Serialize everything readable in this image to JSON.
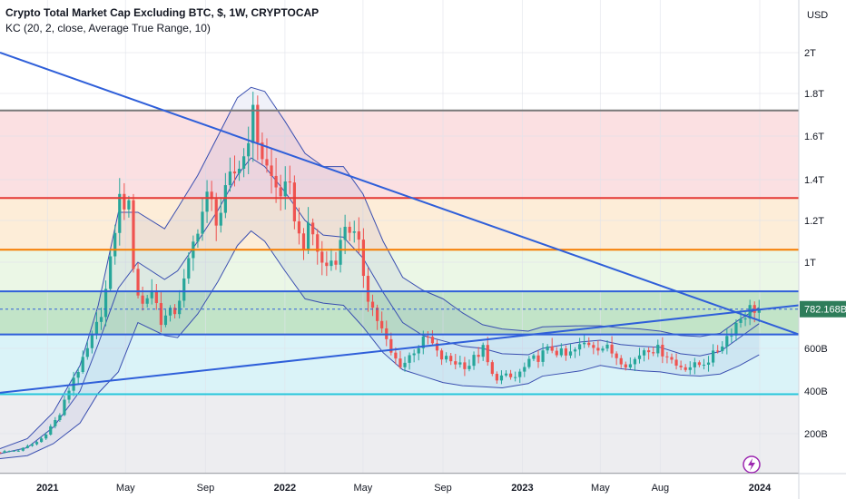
{
  "legend": {
    "title": "Crypto Total Market Cap Excluding BTC, $, 1W, CRYPTOCAP",
    "indicator": "KC (20, 2, close, Average True Range, 10)"
  },
  "currency_label": "USD",
  "last_price_label": "782.168B",
  "colors": {
    "up": "#26a69a",
    "down": "#ef5350",
    "trendline": "#2f5fd9",
    "keltner": "#3a4fb0",
    "last_price_tag": "#2e7d5a"
  },
  "icons": [
    "lightning-icon"
  ],
  "chart_data": {
    "type": "candlestick",
    "title": "Crypto Total Market Cap Excluding BTC, $, 1W, CRYPTOCAP",
    "y_unit": "USD",
    "y_ticks": [
      "200B",
      "400B",
      "600B",
      "1T",
      "1.2T",
      "1.4T",
      "1.6T",
      "1.8T",
      "2T"
    ],
    "y_tick_values": [
      200,
      400,
      600,
      1000,
      1200,
      1400,
      1600,
      1800,
      2000
    ],
    "x_ticks": [
      "2021",
      "May",
      "Sep",
      "2022",
      "May",
      "Sep",
      "2023",
      "May",
      "Aug",
      "2024"
    ],
    "x_tick_dates": [
      "2021-01-01",
      "2021-05-01",
      "2021-09-01",
      "2022-01-01",
      "2022-05-01",
      "2022-09-01",
      "2023-01-01",
      "2023-05-01",
      "2023-08-01",
      "2024-01-01"
    ],
    "last_value": 782.168,
    "zones": [
      {
        "from": 1310,
        "to": 1720,
        "color": "#f9d3d6"
      },
      {
        "from": 1060,
        "to": 1310,
        "color": "#fce6c8"
      },
      {
        "from": 865,
        "to": 1060,
        "color": "#e3f3dc"
      },
      {
        "from": 665,
        "to": 865,
        "color": "#a8d8b1"
      },
      {
        "from": 385,
        "to": 665,
        "color": "#cbeef5"
      },
      {
        "from": 0,
        "to": 385,
        "color": "#e6e6ea"
      }
    ],
    "levels": [
      {
        "value": 1720,
        "color": "#787878"
      },
      {
        "value": 1310,
        "color": "#e53935"
      },
      {
        "value": 1060,
        "color": "#f57c00"
      },
      {
        "value": 865,
        "color": "#2f5fd9"
      },
      {
        "value": 665,
        "color": "#2f5fd9"
      },
      {
        "value": 385,
        "color": "#26c6da"
      },
      {
        "value": 0,
        "color": "#787878"
      }
    ],
    "trendlines": [
      {
        "from": [
          "2020-10-20",
          2000
        ],
        "to": [
          "2024-03-01",
          665
        ]
      },
      {
        "from": [
          "2020-10-20",
          392
        ],
        "to": [
          "2024-03-01",
          800
        ]
      }
    ],
    "keltner": {
      "upper": [
        [
          "2020-10-20",
          125
        ],
        [
          "2020-12-01",
          175
        ],
        [
          "2021-01-10",
          300
        ],
        [
          "2021-02-20",
          520
        ],
        [
          "2021-03-20",
          800
        ],
        [
          "2021-04-20",
          1240
        ],
        [
          "2021-05-20",
          1240
        ],
        [
          "2021-06-30",
          1160
        ],
        [
          "2021-07-20",
          1260
        ],
        [
          "2021-08-20",
          1420
        ],
        [
          "2021-09-20",
          1600
        ],
        [
          "2021-10-20",
          1780
        ],
        [
          "2021-11-10",
          1830
        ],
        [
          "2021-12-01",
          1810
        ],
        [
          "2022-01-01",
          1670
        ],
        [
          "2022-02-01",
          1520
        ],
        [
          "2022-03-01",
          1460
        ],
        [
          "2022-04-01",
          1460
        ],
        [
          "2022-05-01",
          1330
        ],
        [
          "2022-06-01",
          1100
        ],
        [
          "2022-07-01",
          930
        ],
        [
          "2022-08-01",
          870
        ],
        [
          "2022-09-01",
          830
        ],
        [
          "2022-10-01",
          765
        ],
        [
          "2022-11-01",
          710
        ],
        [
          "2022-12-01",
          690
        ],
        [
          "2023-01-10",
          680
        ],
        [
          "2023-02-01",
          700
        ],
        [
          "2023-04-01",
          705
        ],
        [
          "2023-05-01",
          705
        ],
        [
          "2023-06-01",
          695
        ],
        [
          "2023-07-01",
          690
        ],
        [
          "2023-08-01",
          680
        ],
        [
          "2023-09-01",
          660
        ],
        [
          "2023-10-01",
          655
        ],
        [
          "2023-11-01",
          670
        ],
        [
          "2023-12-01",
          735
        ],
        [
          "2023-12-31",
          790
        ]
      ],
      "middle": [
        [
          "2020-10-20",
          100
        ],
        [
          "2020-12-01",
          130
        ],
        [
          "2021-01-10",
          230
        ],
        [
          "2021-02-20",
          400
        ],
        [
          "2021-03-20",
          620
        ],
        [
          "2021-04-20",
          880
        ],
        [
          "2021-05-20",
          1000
        ],
        [
          "2021-06-30",
          920
        ],
        [
          "2021-07-20",
          960
        ],
        [
          "2021-08-20",
          1100
        ],
        [
          "2021-09-20",
          1250
        ],
        [
          "2021-10-20",
          1420
        ],
        [
          "2021-11-10",
          1500
        ],
        [
          "2021-12-01",
          1460
        ],
        [
          "2022-01-01",
          1340
        ],
        [
          "2022-02-01",
          1200
        ],
        [
          "2022-03-01",
          1130
        ],
        [
          "2022-04-01",
          1120
        ],
        [
          "2022-05-01",
          1020
        ],
        [
          "2022-06-01",
          860
        ],
        [
          "2022-07-01",
          720
        ],
        [
          "2022-08-01",
          660
        ],
        [
          "2022-09-01",
          635
        ],
        [
          "2022-10-01",
          610
        ],
        [
          "2022-11-01",
          600
        ],
        [
          "2022-12-01",
          575
        ],
        [
          "2023-01-10",
          570
        ],
        [
          "2023-02-01",
          600
        ],
        [
          "2023-04-01",
          630
        ],
        [
          "2023-05-01",
          638
        ],
        [
          "2023-06-01",
          618
        ],
        [
          "2023-07-01",
          610
        ],
        [
          "2023-08-01",
          605
        ],
        [
          "2023-09-01",
          575
        ],
        [
          "2023-10-01",
          565
        ],
        [
          "2023-11-01",
          585
        ],
        [
          "2023-12-01",
          650
        ],
        [
          "2023-12-31",
          715
        ]
      ],
      "lower": [
        [
          "2020-10-20",
          75
        ],
        [
          "2020-12-01",
          90
        ],
        [
          "2021-01-10",
          150
        ],
        [
          "2021-02-20",
          250
        ],
        [
          "2021-03-20",
          390
        ],
        [
          "2021-04-20",
          490
        ],
        [
          "2021-05-20",
          720
        ],
        [
          "2021-06-30",
          660
        ],
        [
          "2021-07-20",
          650
        ],
        [
          "2021-08-20",
          760
        ],
        [
          "2021-09-20",
          910
        ],
        [
          "2021-10-20",
          1080
        ],
        [
          "2021-11-10",
          1150
        ],
        [
          "2021-12-01",
          1100
        ],
        [
          "2022-01-01",
          960
        ],
        [
          "2022-02-01",
          830
        ],
        [
          "2022-03-01",
          810
        ],
        [
          "2022-04-01",
          800
        ],
        [
          "2022-05-01",
          700
        ],
        [
          "2022-06-01",
          580
        ],
        [
          "2022-07-01",
          500
        ],
        [
          "2022-08-01",
          470
        ],
        [
          "2022-09-01",
          440
        ],
        [
          "2022-10-01",
          425
        ],
        [
          "2022-11-01",
          420
        ],
        [
          "2022-12-01",
          415
        ],
        [
          "2023-01-10",
          435
        ],
        [
          "2023-02-01",
          470
        ],
        [
          "2023-04-01",
          495
        ],
        [
          "2023-05-01",
          520
        ],
        [
          "2023-06-01",
          505
        ],
        [
          "2023-07-01",
          495
        ],
        [
          "2023-08-01",
          490
        ],
        [
          "2023-09-01",
          475
        ],
        [
          "2023-10-01",
          470
        ],
        [
          "2023-11-01",
          480
        ],
        [
          "2023-12-01",
          520
        ],
        [
          "2023-12-31",
          570
        ]
      ]
    },
    "close_path": [
      [
        "2020-10-20",
        108
      ],
      [
        "2020-11-20",
        118
      ],
      [
        "2020-12-20",
        165
      ],
      [
        "2021-01-20",
        290
      ],
      [
        "2021-02-10",
        465
      ],
      [
        "2021-02-25",
        540
      ],
      [
        "2021-03-20",
        720
      ],
      [
        "2021-04-05",
        920
      ],
      [
        "2021-04-20",
        1300
      ],
      [
        "2021-05-05",
        1290
      ],
      [
        "2021-05-15",
        930
      ],
      [
        "2021-05-25",
        790
      ],
      [
        "2021-06-10",
        880
      ],
      [
        "2021-06-25",
        730
      ],
      [
        "2021-07-15",
        770
      ],
      [
        "2021-08-01",
        920
      ],
      [
        "2021-08-20",
        1180
      ],
      [
        "2021-09-05",
        1320
      ],
      [
        "2021-09-20",
        1200
      ],
      [
        "2021-10-10",
        1400
      ],
      [
        "2021-11-01",
        1520
      ],
      [
        "2021-11-10",
        1720
      ],
      [
        "2021-12-01",
        1470
      ],
      [
        "2021-12-20",
        1350
      ],
      [
        "2022-01-10",
        1330
      ],
      [
        "2022-01-25",
        1080
      ],
      [
        "2022-02-10",
        1160
      ],
      [
        "2022-03-01",
        970
      ],
      [
        "2022-03-25",
        1050
      ],
      [
        "2022-04-05",
        1210
      ],
      [
        "2022-04-25",
        1060
      ],
      [
        "2022-05-10",
        830
      ],
      [
        "2022-05-25",
        720
      ],
      [
        "2022-06-15",
        560
      ],
      [
        "2022-07-01",
        520
      ],
      [
        "2022-07-20",
        600
      ],
      [
        "2022-08-10",
        650
      ],
      [
        "2022-08-25",
        560
      ],
      [
        "2022-09-15",
        540
      ],
      [
        "2022-10-10",
        520
      ],
      [
        "2022-11-01",
        600
      ],
      [
        "2022-11-15",
        470
      ],
      [
        "2022-12-20",
        460
      ],
      [
        "2023-01-15",
        540
      ],
      [
        "2023-02-15",
        600
      ],
      [
        "2023-03-10",
        560
      ],
      [
        "2023-04-10",
        630
      ],
      [
        "2023-05-10",
        600
      ],
      [
        "2023-06-15",
        520
      ],
      [
        "2023-07-10",
        610
      ],
      [
        "2023-08-10",
        580
      ],
      [
        "2023-08-25",
        520
      ],
      [
        "2023-09-25",
        515
      ],
      [
        "2023-10-20",
        560
      ],
      [
        "2023-11-10",
        650
      ],
      [
        "2023-12-01",
        740
      ],
      [
        "2023-12-20",
        790
      ],
      [
        "2023-12-31",
        782
      ]
    ],
    "candle_count": 166
  }
}
